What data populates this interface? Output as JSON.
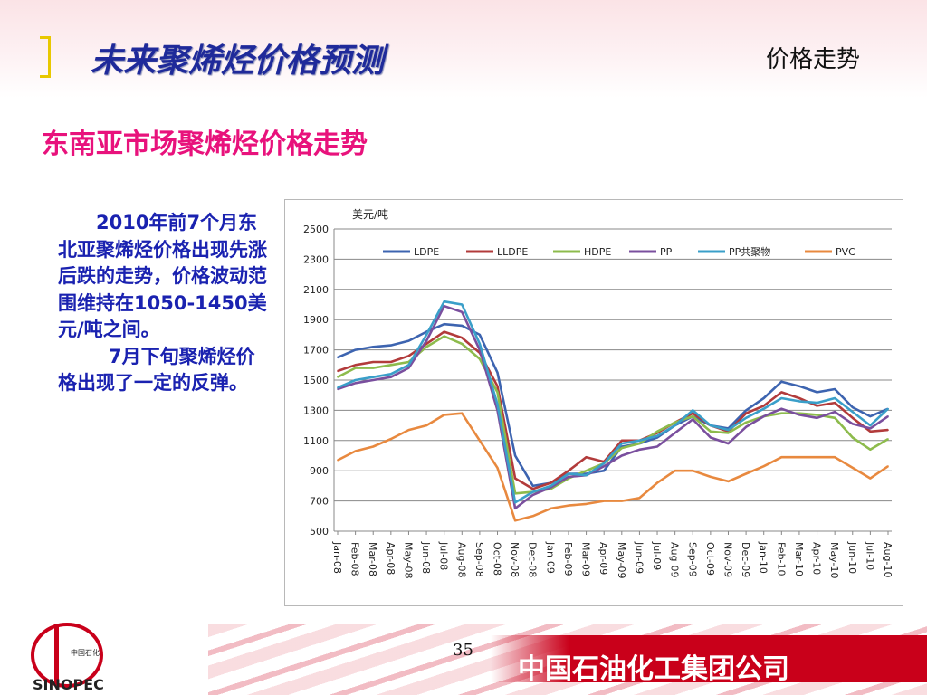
{
  "header": {
    "title": "未来聚烯烃价格预测",
    "corner_label": "价格走势"
  },
  "subtitle": "东南亚市场聚烯烃价格走势",
  "body_text": {
    "para1": "2010年前7个月东北亚聚烯烃价格出现先涨后跌的走势，价格波动范围维持在1050-1450美元/吨之间。",
    "para2": "7月下旬聚烯烃价格出现了一定的反弹。"
  },
  "footer": {
    "page_number": "35",
    "company": "中国石油化工集团公司",
    "logo_text": "中国石化",
    "logo_brand": "SINOPEC"
  },
  "colors": {
    "title": "#1f2a9a",
    "subtitle": "#e8127c",
    "body": "#1a22b0",
    "footer_red": "#c9001a"
  },
  "chart_data": {
    "type": "line",
    "unit_label": "美元/吨",
    "ylim": [
      500,
      2500
    ],
    "yticks": [
      500,
      700,
      900,
      1100,
      1300,
      1500,
      1700,
      1900,
      2100,
      2300,
      2500
    ],
    "categories": [
      "Jan-08",
      "Feb-08",
      "Mar-08",
      "Apr-08",
      "May-08",
      "Jun-08",
      "Jul-08",
      "Aug-08",
      "Sep-08",
      "Oct-08",
      "Nov-08",
      "Dec-08",
      "Jan-09",
      "Feb-09",
      "Mar-09",
      "Apr-09",
      "May-09",
      "Jun-09",
      "Jul-09",
      "Aug-09",
      "Sep-09",
      "Oct-09",
      "Nov-09",
      "Dec-09",
      "Jan-10",
      "Feb-10",
      "Mar-10",
      "Apr-10",
      "May-10",
      "Jun-10",
      "Jul-10",
      "Aug-10"
    ],
    "grid": "horizontal",
    "legend_position": "top",
    "series": [
      {
        "name": "LDPE",
        "color": "#3d64b0",
        "values": [
          1650,
          1700,
          1720,
          1730,
          1760,
          1820,
          1870,
          1860,
          1800,
          1550,
          1000,
          800,
          820,
          880,
          880,
          900,
          1060,
          1080,
          1120,
          1200,
          1260,
          1200,
          1180,
          1300,
          1380,
          1490,
          1460,
          1420,
          1440,
          1320,
          1260,
          1310
        ]
      },
      {
        "name": "LLDPE",
        "color": "#b23b3b",
        "values": [
          1560,
          1600,
          1620,
          1620,
          1660,
          1740,
          1820,
          1780,
          1680,
          1460,
          850,
          780,
          820,
          900,
          990,
          960,
          1100,
          1100,
          1150,
          1220,
          1280,
          1200,
          1160,
          1280,
          1330,
          1420,
          1380,
          1330,
          1350,
          1250,
          1160,
          1170
        ]
      },
      {
        "name": "HDPE",
        "color": "#8dbb4c",
        "values": [
          1520,
          1580,
          1580,
          1600,
          1620,
          1720,
          1790,
          1740,
          1640,
          1420,
          750,
          760,
          780,
          850,
          900,
          950,
          1050,
          1080,
          1160,
          1220,
          1260,
          1160,
          1150,
          1220,
          1260,
          1280,
          1280,
          1270,
          1250,
          1120,
          1040,
          1110
        ]
      },
      {
        "name": "PP",
        "color": "#7a4f9e",
        "values": [
          1440,
          1480,
          1500,
          1520,
          1580,
          1760,
          1990,
          1950,
          1700,
          1300,
          650,
          740,
          790,
          860,
          870,
          930,
          1000,
          1040,
          1060,
          1150,
          1240,
          1120,
          1080,
          1190,
          1260,
          1310,
          1270,
          1250,
          1290,
          1210,
          1180,
          1260
        ]
      },
      {
        "name": "PP共聚物",
        "color": "#3a9fc9",
        "values": [
          1450,
          1500,
          1520,
          1540,
          1600,
          1800,
          2020,
          2000,
          1740,
          1340,
          690,
          760,
          800,
          880,
          870,
          950,
          1080,
          1100,
          1130,
          1200,
          1300,
          1200,
          1170,
          1250,
          1310,
          1380,
          1360,
          1350,
          1380,
          1290,
          1200,
          1310
        ]
      },
      {
        "name": "PVC",
        "color": "#e8893f",
        "values": [
          970,
          1030,
          1060,
          1110,
          1170,
          1200,
          1270,
          1280,
          1100,
          920,
          570,
          600,
          650,
          670,
          680,
          700,
          700,
          720,
          820,
          900,
          900,
          860,
          830,
          880,
          930,
          990,
          990,
          990,
          990,
          920,
          850,
          930
        ]
      }
    ]
  }
}
